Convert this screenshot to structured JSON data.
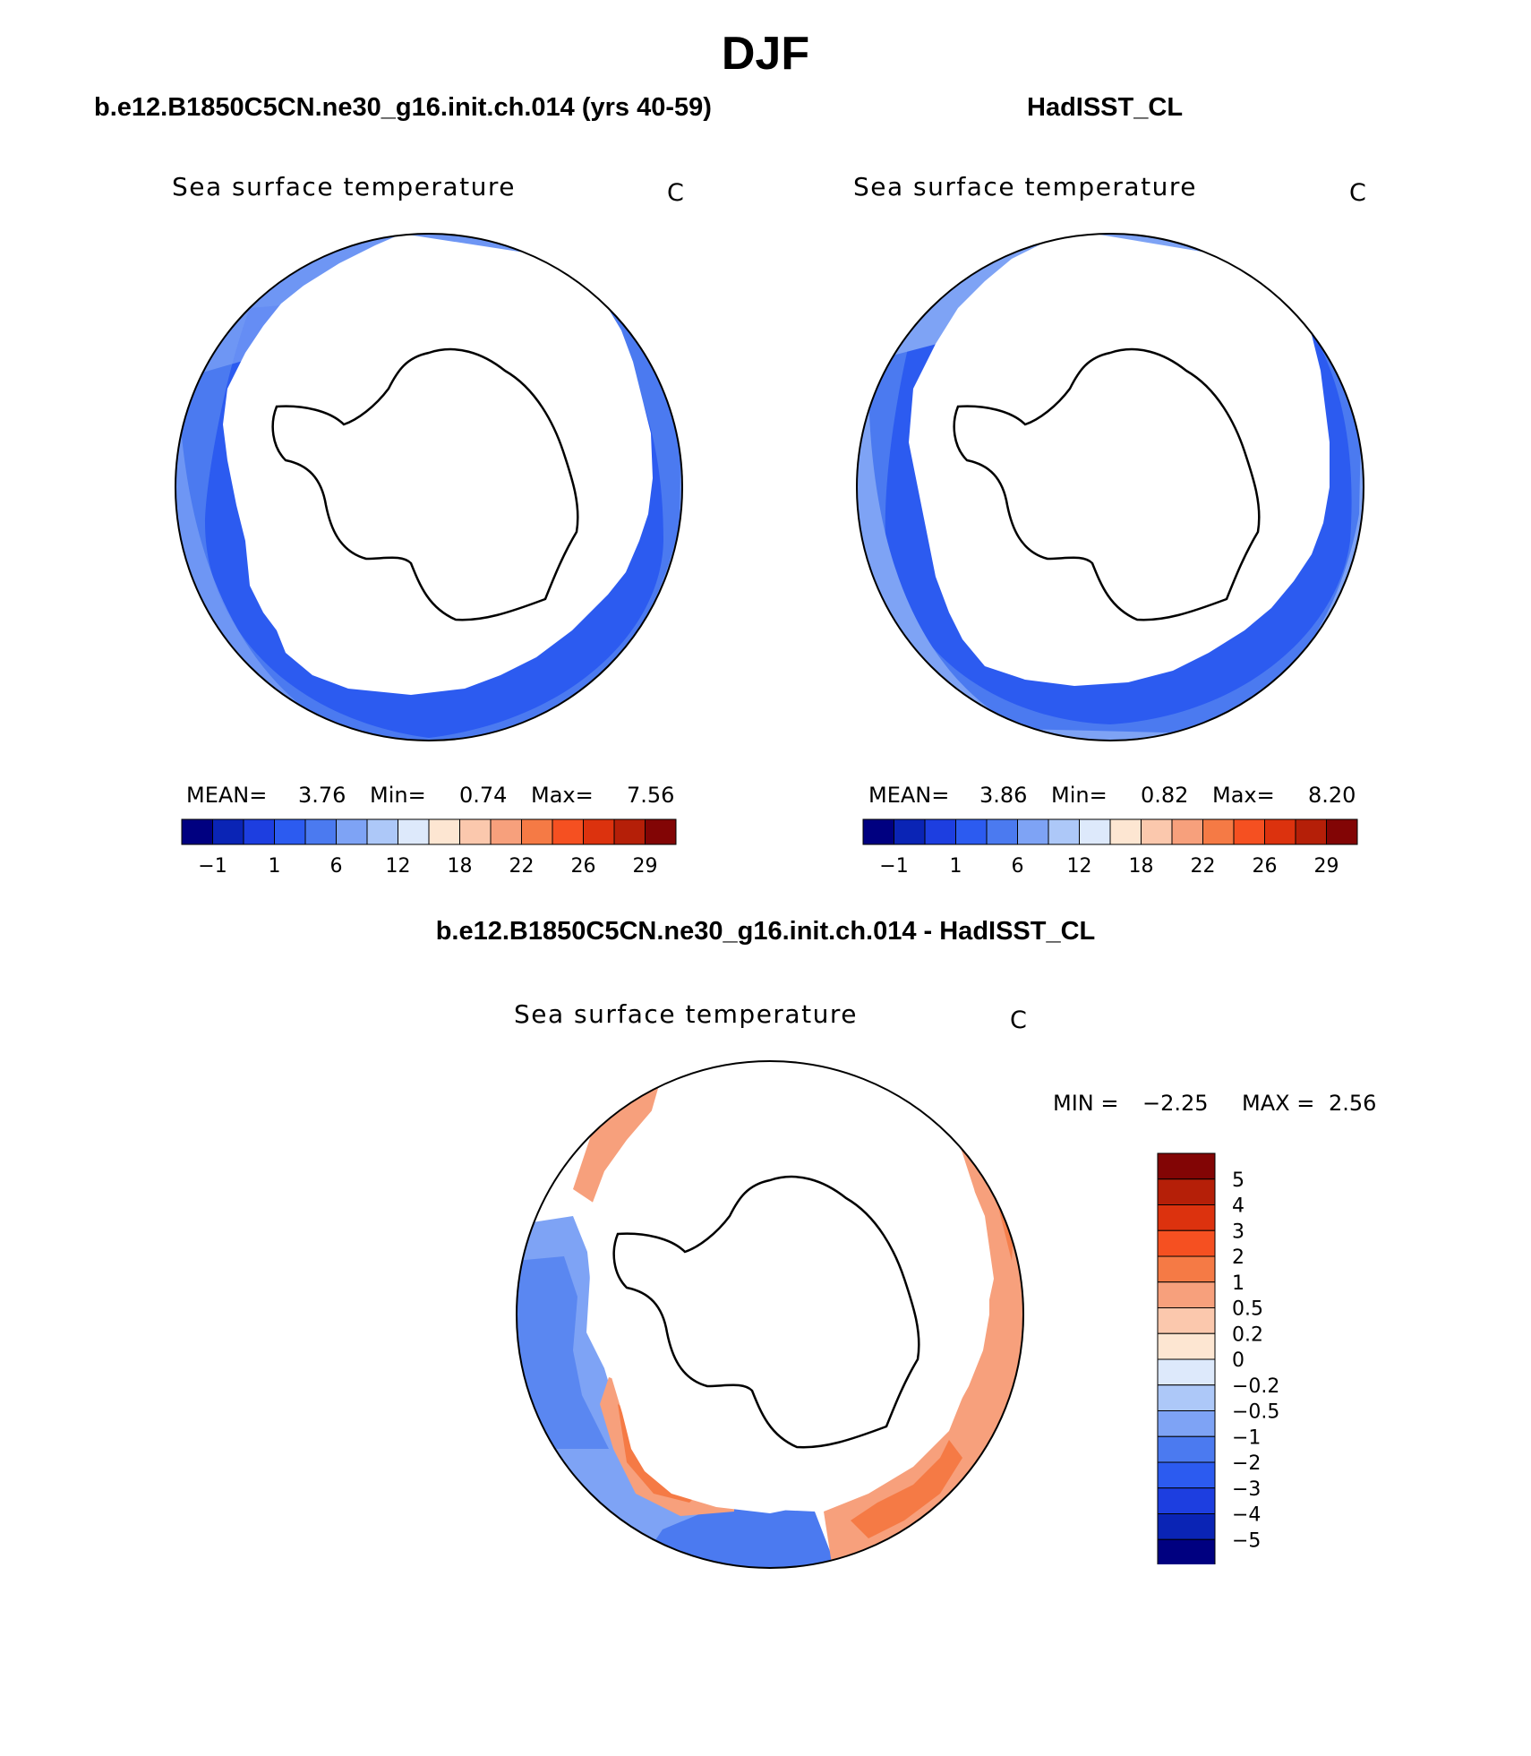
{
  "page": {
    "title": "DJF",
    "left_header": "b.e12.B1850C5CN.ne30_g16.init.ch.014 (yrs 40-59)",
    "right_header": "HadISST_CL",
    "diff_header": "b.e12.B1850C5CN.ne30_g16.init.ch.014 - HadISST_CL"
  },
  "colors": {
    "abs_palette": [
      "#000080",
      "#0a24b5",
      "#1d3ee0",
      "#2c5bf0",
      "#4b7af0",
      "#7ea3f5",
      "#adc8f8",
      "#dde9fb",
      "#fde6d2",
      "#fbc8ad",
      "#f7a07c",
      "#f57a45",
      "#f55021",
      "#dc320e",
      "#b51f08",
      "#820505"
    ],
    "diff_palette": [
      "#000080",
      "#0a24b5",
      "#1d3ee0",
      "#2c5bf0",
      "#4b7af0",
      "#7ea3f5",
      "#adc8f8",
      "#dde9fb",
      "#fde6d2",
      "#fbc8ad",
      "#f7a07c",
      "#f57a45",
      "#f55021",
      "#dc320e",
      "#b51f08",
      "#820505"
    ],
    "land": "#ffffff",
    "coast": "#000000"
  },
  "chart_data": [
    {
      "type": "heatmap",
      "projection": "south-polar-stereographic",
      "panel": "model",
      "title": "Sea surface temperature",
      "units": "C",
      "stats": {
        "mean_label": "MEAN=",
        "mean": "3.76",
        "min_label": "Min=",
        "min": "0.74",
        "max_label": "Max=",
        "max": "7.56"
      },
      "colorbar_ticks": [
        "−1",
        "1",
        "6",
        "12",
        "18",
        "22",
        "26",
        "29"
      ]
    },
    {
      "type": "heatmap",
      "projection": "south-polar-stereographic",
      "panel": "observations",
      "title": "Sea surface temperature",
      "units": "C",
      "stats": {
        "mean_label": "MEAN=",
        "mean": "3.86",
        "min_label": "Min=",
        "min": "0.82",
        "max_label": "Max=",
        "max": "8.20"
      },
      "colorbar_ticks": [
        "−1",
        "1",
        "6",
        "12",
        "18",
        "22",
        "26",
        "29"
      ]
    },
    {
      "type": "heatmap",
      "projection": "south-polar-stereographic",
      "panel": "difference",
      "title": "Sea surface temperature",
      "units": "C",
      "stats": {
        "min_label": "MIN =",
        "min": "−2.25",
        "max_label": "MAX =",
        "max": "2.56"
      },
      "colorbar_levels": [
        "5",
        "4",
        "3",
        "2",
        "1",
        "0.5",
        "0.2",
        "0",
        "−0.2",
        "−0.5",
        "−1",
        "−2",
        "−3",
        "−4",
        "−5"
      ]
    }
  ]
}
